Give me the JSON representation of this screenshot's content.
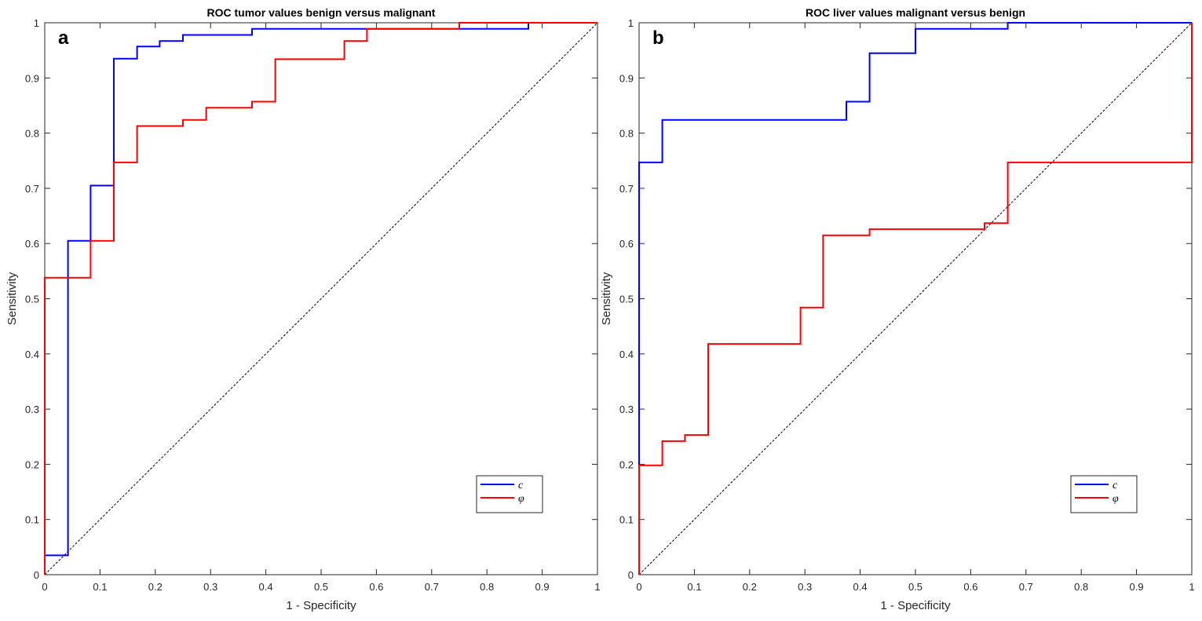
{
  "chart_data": [
    {
      "type": "line",
      "panel_label": "a",
      "title": "ROC tumor values  benign versus malignant",
      "xlabel": "1 - Specificity",
      "ylabel": "Sensitivity",
      "xlim": [
        0,
        1
      ],
      "ylim": [
        0,
        1
      ],
      "xticks": [
        "0",
        "0.1",
        "0.2",
        "0.3",
        "0.4",
        "0.5",
        "0.6",
        "0.7",
        "0.8",
        "0.9",
        "1"
      ],
      "yticks": [
        "0",
        "0.1",
        "0.2",
        "0.3",
        "0.4",
        "0.5",
        "0.6",
        "0.7",
        "0.8",
        "0.9",
        "1"
      ],
      "grid": false,
      "legend_position": "bottom-right",
      "reference_line": {
        "style": "dashed",
        "color": "#000000",
        "from": [
          0,
          0
        ],
        "to": [
          1,
          1
        ]
      },
      "series": [
        {
          "name": "c",
          "color": "#0000ff",
          "step": true,
          "points": [
            [
              0,
              0.035
            ],
            [
              0.042,
              0.035
            ],
            [
              0.042,
              0.605
            ],
            [
              0.083,
              0.605
            ],
            [
              0.083,
              0.705
            ],
            [
              0.125,
              0.705
            ],
            [
              0.125,
              0.935
            ],
            [
              0.167,
              0.935
            ],
            [
              0.167,
              0.957
            ],
            [
              0.208,
              0.957
            ],
            [
              0.208,
              0.967
            ],
            [
              0.25,
              0.967
            ],
            [
              0.25,
              0.978
            ],
            [
              0.375,
              0.978
            ],
            [
              0.375,
              0.989
            ],
            [
              0.875,
              0.989
            ],
            [
              0.875,
              1.0
            ],
            [
              1.0,
              1.0
            ]
          ]
        },
        {
          "name": "φ",
          "color": "#ff0000",
          "step": true,
          "points": [
            [
              0,
              0
            ],
            [
              0,
              0.538
            ],
            [
              0.083,
              0.538
            ],
            [
              0.083,
              0.605
            ],
            [
              0.125,
              0.605
            ],
            [
              0.125,
              0.747
            ],
            [
              0.167,
              0.747
            ],
            [
              0.167,
              0.813
            ],
            [
              0.25,
              0.813
            ],
            [
              0.25,
              0.824
            ],
            [
              0.292,
              0.824
            ],
            [
              0.292,
              0.846
            ],
            [
              0.375,
              0.846
            ],
            [
              0.375,
              0.857
            ],
            [
              0.417,
              0.857
            ],
            [
              0.417,
              0.934
            ],
            [
              0.542,
              0.934
            ],
            [
              0.542,
              0.967
            ],
            [
              0.583,
              0.967
            ],
            [
              0.583,
              0.989
            ],
            [
              0.75,
              0.989
            ],
            [
              0.75,
              1.0
            ],
            [
              1.0,
              1.0
            ]
          ]
        }
      ]
    },
    {
      "type": "line",
      "panel_label": "b",
      "title": "ROC liver values  malignant  versus benign",
      "xlabel": "1 - Specificity",
      "ylabel": "Sensitivity",
      "xlim": [
        0,
        1
      ],
      "ylim": [
        0,
        1
      ],
      "xticks": [
        "0",
        "0.1",
        "0.2",
        "0.3",
        "0.4",
        "0.5",
        "0.6",
        "0.7",
        "0.8",
        "0.9",
        "1"
      ],
      "yticks": [
        "0",
        "0.1",
        "0.2",
        "0.3",
        "0.4",
        "0.5",
        "0.6",
        "0.7",
        "0.8",
        "0.9",
        "1"
      ],
      "grid": false,
      "legend_position": "bottom-right",
      "reference_line": {
        "style": "dashed",
        "color": "#000000",
        "from": [
          0,
          0
        ],
        "to": [
          1,
          1
        ]
      },
      "series": [
        {
          "name": "c",
          "color": "#0000ff",
          "step": true,
          "points": [
            [
              0,
              0
            ],
            [
              0,
              0.747
            ],
            [
              0.042,
              0.747
            ],
            [
              0.042,
              0.824
            ],
            [
              0.375,
              0.824
            ],
            [
              0.375,
              0.857
            ],
            [
              0.417,
              0.857
            ],
            [
              0.417,
              0.945
            ],
            [
              0.5,
              0.945
            ],
            [
              0.5,
              0.989
            ],
            [
              0.667,
              0.989
            ],
            [
              0.667,
              1.0
            ],
            [
              1.0,
              1.0
            ]
          ]
        },
        {
          "name": "φ",
          "color": "#ff0000",
          "step": true,
          "points": [
            [
              0,
              0
            ],
            [
              0,
              0.198
            ],
            [
              0.042,
              0.198
            ],
            [
              0.042,
              0.242
            ],
            [
              0.083,
              0.242
            ],
            [
              0.083,
              0.253
            ],
            [
              0.125,
              0.253
            ],
            [
              0.125,
              0.418
            ],
            [
              0.292,
              0.418
            ],
            [
              0.292,
              0.484
            ],
            [
              0.333,
              0.484
            ],
            [
              0.333,
              0.615
            ],
            [
              0.417,
              0.615
            ],
            [
              0.417,
              0.626
            ],
            [
              0.625,
              0.626
            ],
            [
              0.625,
              0.637
            ],
            [
              0.667,
              0.637
            ],
            [
              0.667,
              0.747
            ],
            [
              1.0,
              0.747
            ],
            [
              1.0,
              1.0
            ]
          ]
        }
      ]
    }
  ]
}
